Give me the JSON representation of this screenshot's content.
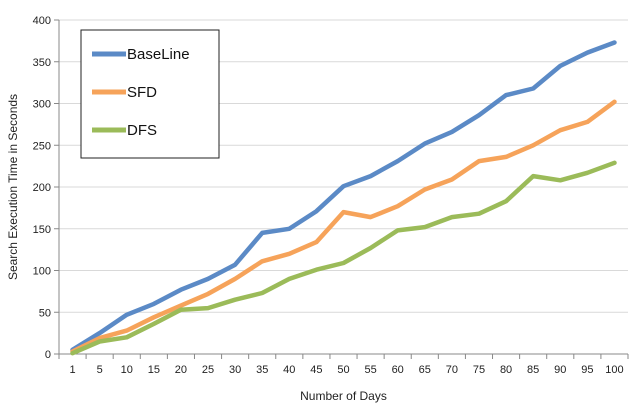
{
  "chart_data": {
    "type": "line",
    "title": "",
    "xlabel": "Number of Days",
    "ylabel": "Search Execution Time in Seconds",
    "x": [
      "1",
      "5",
      "10",
      "15",
      "20",
      "25",
      "30",
      "35",
      "40",
      "45",
      "50",
      "55",
      "60",
      "65",
      "70",
      "75",
      "80",
      "85",
      "90",
      "95",
      "100"
    ],
    "ylim": [
      0,
      400
    ],
    "yticks": [
      "0",
      "50",
      "100",
      "150",
      "200",
      "250",
      "300",
      "350",
      "400"
    ],
    "grid": true,
    "legend_position": "top-left",
    "series": [
      {
        "name": "BaseLine",
        "color": "#5b8ac6",
        "values": [
          5,
          25,
          47,
          60,
          77,
          90,
          107,
          145,
          150,
          171,
          201,
          213,
          231,
          252,
          266,
          286,
          310,
          318,
          345,
          361,
          373
        ]
      },
      {
        "name": "SFD",
        "color": "#f6a35a",
        "values": [
          3,
          19,
          28,
          44,
          58,
          72,
          90,
          111,
          120,
          134,
          170,
          164,
          177,
          197,
          209,
          231,
          236,
          250,
          268,
          278,
          302
        ]
      },
      {
        "name": "DFS",
        "color": "#9bbb59",
        "values": [
          1,
          15,
          20,
          36,
          53,
          55,
          65,
          73,
          90,
          101,
          109,
          127,
          148,
          152,
          164,
          168,
          183,
          213,
          208,
          217,
          229
        ]
      }
    ]
  }
}
